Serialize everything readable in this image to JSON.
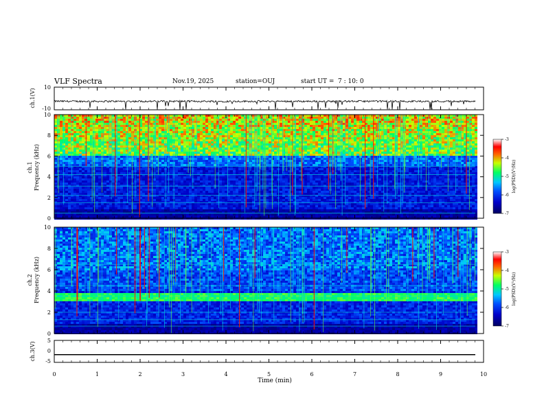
{
  "header": {
    "title": "VLF Spectra",
    "date": "Nov.19, 2025",
    "station": "station=OUJ",
    "start_ut_label": "start  UT =",
    "start_ut_value": "7 : 10: 0"
  },
  "chart_data": [
    {
      "type": "line",
      "id": "ch1-waveform",
      "ylabel": "ch.1(V)",
      "ylim": [
        -10,
        10
      ],
      "yticks": [
        "10",
        "-10"
      ],
      "xlim": [
        0,
        10
      ],
      "baseline": -2.5,
      "description_values": "noisy waveform around -2.5 V with spikes to about -10 V"
    },
    {
      "type": "heatmap",
      "id": "ch1-spectrogram",
      "ylabel_channel": "ch.1",
      "ylabel": "Frequency (kHz)",
      "ylim": [
        0,
        10
      ],
      "yticks": [
        "0",
        "2",
        "4",
        "6",
        "8",
        "10"
      ],
      "xlim": [
        0,
        10
      ],
      "colorbar": {
        "label": "log(PSD)(V²/Hz)",
        "range": [
          -7,
          -3
        ],
        "ticks": [
          "-3",
          "-4",
          "-5",
          "-6",
          "-7"
        ]
      },
      "bands_khz": [
        0.5,
        1.5,
        2.2,
        3.1,
        4.2,
        5.0
      ],
      "high_activity_above_khz": 6
    },
    {
      "type": "heatmap",
      "id": "ch2-spectrogram",
      "ylabel_channel": "ch.2",
      "ylabel": "Frequency (kHz)",
      "ylim": [
        0,
        10
      ],
      "yticks": [
        "0",
        "2",
        "4",
        "6",
        "8",
        "10"
      ],
      "xlim": [
        0,
        10
      ],
      "colorbar": {
        "label": "log(PSD)(V²/Hz)",
        "range": [
          -7,
          -3
        ],
        "ticks": [
          "-3",
          "-4",
          "-5",
          "-6",
          "-7"
        ]
      },
      "bands_khz": [
        0.7,
        1.3,
        2.0,
        3.5,
        4.5,
        6.5
      ],
      "strong_band_khz": 3.4
    },
    {
      "type": "line",
      "id": "ch3-waveform",
      "ylabel": "ch.3(V)",
      "ylim": [
        -5,
        5
      ],
      "yticks": [
        "5",
        "0",
        "-5"
      ],
      "xlim": [
        0,
        10
      ],
      "baseline": -1.5
    }
  ],
  "xaxis": {
    "label": "Time (min)",
    "ticks": [
      "0",
      "1",
      "2",
      "3",
      "4",
      "5",
      "6",
      "7",
      "8",
      "9",
      "10"
    ]
  },
  "colors": {
    "axis": "#000000",
    "background": "#ffffff"
  }
}
